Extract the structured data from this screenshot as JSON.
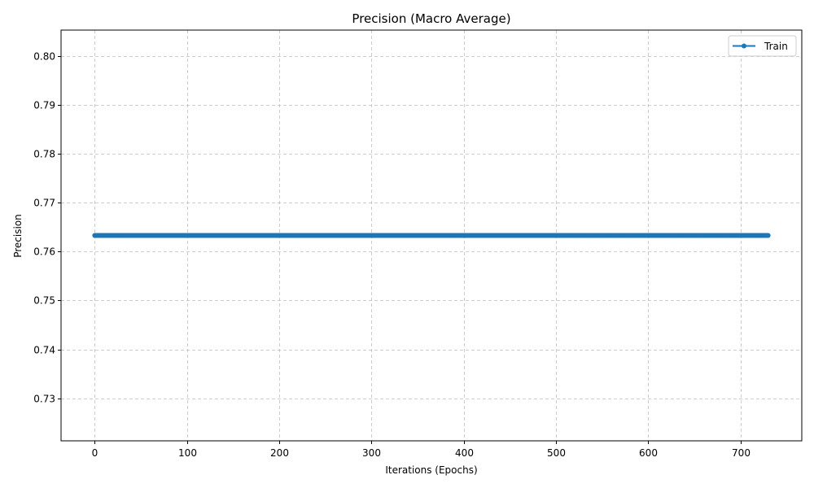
{
  "chart_data": {
    "type": "line",
    "title": "Precision (Macro Average)",
    "xlabel": "Iterations (Epochs)",
    "ylabel": "Precision",
    "xlim": [
      -36.5,
      766.5
    ],
    "ylim": [
      0.7213,
      0.8053
    ],
    "xticks": [
      0,
      100,
      200,
      300,
      400,
      500,
      600,
      700
    ],
    "xtick_labels": [
      "0",
      "100",
      "200",
      "300",
      "400",
      "500",
      "600",
      "700"
    ],
    "yticks": [
      0.73,
      0.74,
      0.75,
      0.76,
      0.77,
      0.78,
      0.79,
      0.8
    ],
    "ytick_labels": [
      "0.73",
      "0.74",
      "0.75",
      "0.76",
      "0.77",
      "0.78",
      "0.79",
      "0.80"
    ],
    "grid": true,
    "legend_position": "top-right",
    "series": [
      {
        "name": "Train",
        "color": "#1f77b4",
        "marker": "circle",
        "x_start": 0,
        "x_end": 730,
        "x_step": 1,
        "constant_y": 0.7633
      }
    ]
  }
}
